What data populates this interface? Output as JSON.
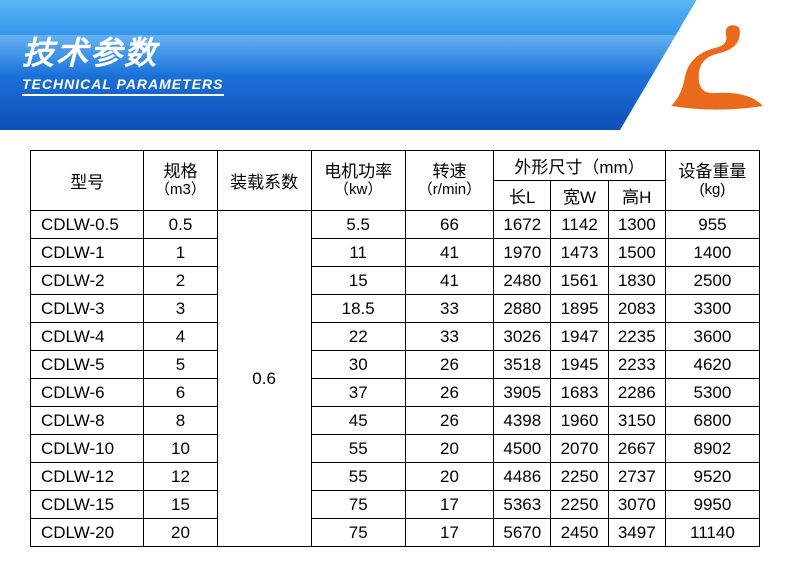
{
  "header": {
    "title_cn": "技术参数",
    "title_en": "TECHNICAL PARAMETERS",
    "header_gradient": [
      "#5bb5f5",
      "#2a8de8",
      "#1a6fd6",
      "#0d4fb8"
    ],
    "logo_color": "#e86a1a",
    "logo_bg": "#ffffff"
  },
  "table": {
    "columns": {
      "model": "型号",
      "spec": "规格",
      "spec_unit": "（m3）",
      "load_factor": "装载系数",
      "power": "电机功率",
      "power_unit": "（kw）",
      "speed": "转速",
      "speed_unit": "（r/min）",
      "dims": "外形尺寸（mm）",
      "len": "长L",
      "wid": "宽W",
      "hei": "高H",
      "weight": "设备重量",
      "weight_unit": "(kg)"
    },
    "load_factor_value": "0.6",
    "rows": [
      {
        "model": "CDLW-0.5",
        "spec": "0.5",
        "power": "5.5",
        "speed": "66",
        "l": "1672",
        "w": "1142",
        "h": "1300",
        "weight": "955"
      },
      {
        "model": "CDLW-1",
        "spec": "1",
        "power": "11",
        "speed": "41",
        "l": "1970",
        "w": "1473",
        "h": "1500",
        "weight": "1400"
      },
      {
        "model": "CDLW-2",
        "spec": "2",
        "power": "15",
        "speed": "41",
        "l": "2480",
        "w": "1561",
        "h": "1830",
        "weight": "2500"
      },
      {
        "model": "CDLW-3",
        "spec": "3",
        "power": "18.5",
        "speed": "33",
        "l": "2880",
        "w": "1895",
        "h": "2083",
        "weight": "3300"
      },
      {
        "model": "CDLW-4",
        "spec": "4",
        "power": "22",
        "speed": "33",
        "l": "3026",
        "w": "1947",
        "h": "2235",
        "weight": "3600"
      },
      {
        "model": "CDLW-5",
        "spec": "5",
        "power": "30",
        "speed": "26",
        "l": "3518",
        "w": "1945",
        "h": "2233",
        "weight": "4620"
      },
      {
        "model": "CDLW-6",
        "spec": "6",
        "power": "37",
        "speed": "26",
        "l": "3905",
        "w": "1683",
        "h": "2286",
        "weight": "5300"
      },
      {
        "model": "CDLW-8",
        "spec": "8",
        "power": "45",
        "speed": "26",
        "l": "4398",
        "w": "1960",
        "h": "3150",
        "weight": "6800"
      },
      {
        "model": "CDLW-10",
        "spec": "10",
        "power": "55",
        "speed": "20",
        "l": "4500",
        "w": "2070",
        "h": "2667",
        "weight": "8902"
      },
      {
        "model": "CDLW-12",
        "spec": "12",
        "power": "55",
        "speed": "20",
        "l": "4486",
        "w": "2250",
        "h": "2737",
        "weight": "9520"
      },
      {
        "model": "CDLW-15",
        "spec": "15",
        "power": "75",
        "speed": "17",
        "l": "5363",
        "w": "2250",
        "h": "3070",
        "weight": "9950"
      },
      {
        "model": "CDLW-20",
        "spec": "20",
        "power": "75",
        "speed": "17",
        "l": "5670",
        "w": "2450",
        "h": "3497",
        "weight": "11140"
      }
    ],
    "text_color": "#000000",
    "border_color": "#000000",
    "bg_color": "#ffffff",
    "font_size": 17
  }
}
